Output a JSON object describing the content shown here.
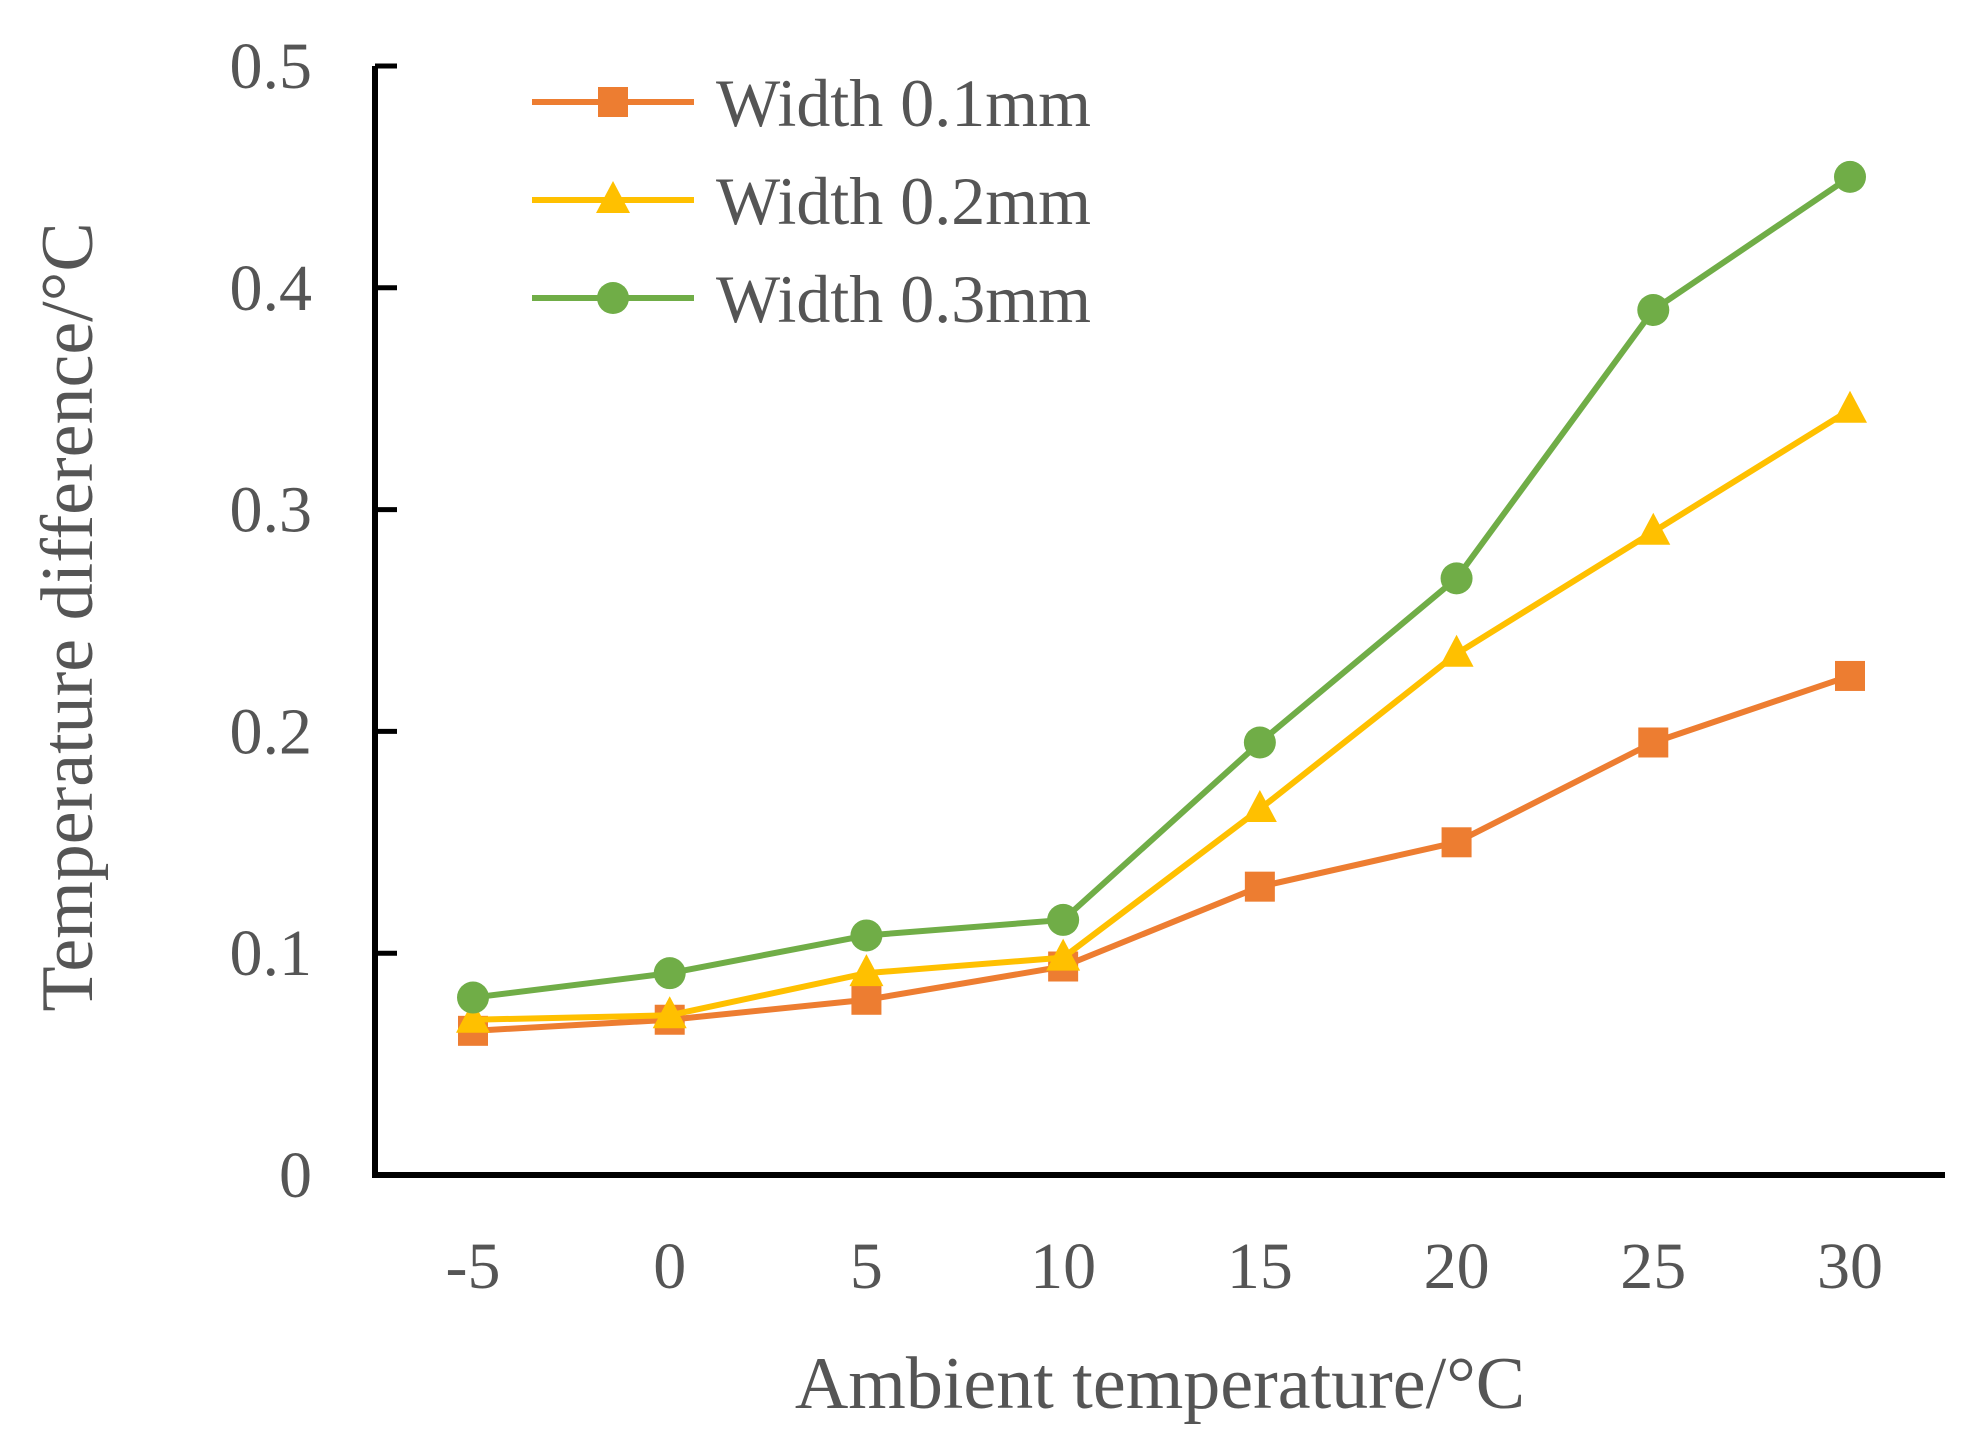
{
  "chart_data": {
    "type": "line",
    "title": "",
    "xlabel": "Ambient temperature/°C",
    "ylabel": "Temperature difference/°C",
    "categories": [
      "-5",
      "0",
      "5",
      "10",
      "15",
      "20",
      "25",
      "30"
    ],
    "ylim": [
      0,
      0.5
    ],
    "yticks": [
      0,
      0.1,
      0.2,
      0.3,
      0.4,
      0.5
    ],
    "ytick_labels": [
      "0",
      "0.1",
      "0.2",
      "0.3",
      "0.4",
      "0.5"
    ],
    "grid": false,
    "legend_position": "top-left",
    "series": [
      {
        "name": "Width 0.1mm",
        "color": "#ED7D31",
        "marker": "square",
        "values": [
          0.065,
          0.07,
          0.079,
          0.094,
          0.13,
          0.15,
          0.195,
          0.225
        ]
      },
      {
        "name": "Width 0.2mm",
        "color": "#FFC000",
        "marker": "triangle",
        "values": [
          0.07,
          0.072,
          0.091,
          0.098,
          0.165,
          0.235,
          0.29,
          0.345
        ]
      },
      {
        "name": "Width 0.3mm",
        "color": "#70AD47",
        "marker": "circle",
        "values": [
          0.08,
          0.091,
          0.108,
          0.115,
          0.195,
          0.269,
          0.39,
          0.45
        ]
      }
    ]
  }
}
